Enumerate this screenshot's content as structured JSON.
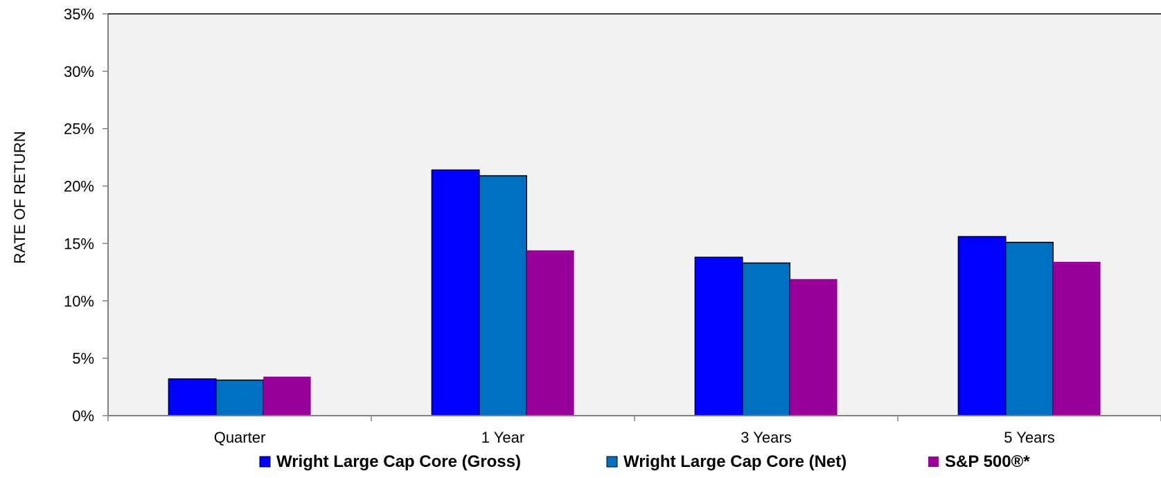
{
  "chart_data": {
    "type": "bar",
    "title": "",
    "xlabel": "",
    "ylabel": "RATE OF RETURN",
    "categories": [
      "Quarter",
      "1 Year",
      "3 Years",
      "5 Years"
    ],
    "y_ticks": [
      "0%",
      "5%",
      "10%",
      "15%",
      "20%",
      "25%",
      "30%",
      "35%"
    ],
    "ylim": [
      0,
      35
    ],
    "y_unit": "%",
    "grid": false,
    "plot_background": "#f2f2f2",
    "legend_position": "bottom",
    "series": [
      {
        "name": "Wright Large Cap Core (Gross)",
        "color": "#0000ff",
        "values": [
          3.2,
          21.4,
          13.8,
          15.6
        ]
      },
      {
        "name": "Wright Large Cap Core (Net)",
        "color": "#0070c0",
        "values": [
          3.1,
          20.9,
          13.3,
          15.1
        ]
      },
      {
        "name": "S&P 500®*",
        "color": "#990099",
        "values": [
          3.4,
          14.4,
          11.9,
          13.4
        ]
      }
    ]
  }
}
